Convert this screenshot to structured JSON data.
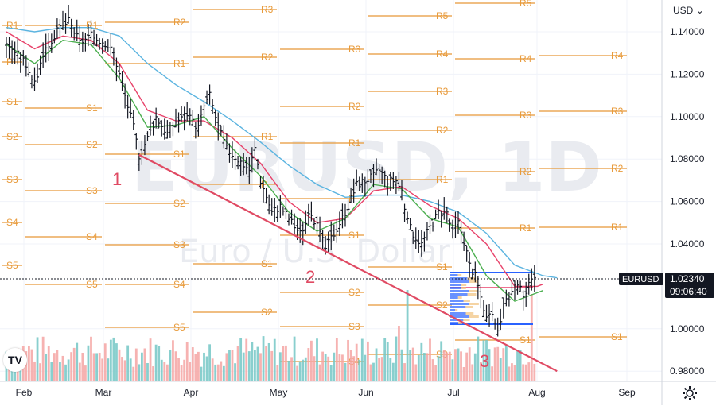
{
  "header": {
    "currency_label": "USD"
  },
  "watermark": {
    "symbol": "EURUSD, 1D",
    "description": "Euro / U.S. Dollar"
  },
  "price_tag": {
    "symbol": "EURUSD",
    "price": "1.02340",
    "countdown": "09:06:40"
  },
  "logo": {
    "text": "TV"
  },
  "chart_data": {
    "type": "candlestick",
    "title": "EURUSD, 1D",
    "subtitle": "Euro / U.S. Dollar",
    "x_ticks": [
      "Feb",
      "Mar",
      "Apr",
      "May",
      "Jun",
      "Jul",
      "Aug",
      "Sep"
    ],
    "y_ticks": [
      "1.14000",
      "1.12000",
      "1.10000",
      "1.08000",
      "1.06000",
      "1.04000",
      "1.00000",
      "0.98000"
    ],
    "ylim": [
      0.977,
      1.149
    ],
    "last_price": 1.0234,
    "wave_labels": [
      "1",
      "2",
      "3"
    ],
    "price_path": [
      [
        0,
        1.135
      ],
      [
        7,
        1.125
      ],
      [
        10,
        1.115
      ],
      [
        13,
        1.13
      ],
      [
        18,
        1.14
      ],
      [
        22,
        1.145
      ],
      [
        26,
        1.135
      ],
      [
        30,
        1.138
      ],
      [
        35,
        1.135
      ],
      [
        38,
        1.13
      ],
      [
        42,
        1.11
      ],
      [
        45,
        1.095
      ],
      [
        47,
        1.082
      ],
      [
        50,
        1.09
      ],
      [
        53,
        1.1
      ],
      [
        57,
        1.092
      ],
      [
        60,
        1.098
      ],
      [
        64,
        1.1
      ],
      [
        68,
        1.095
      ],
      [
        70,
        1.105
      ],
      [
        72,
        1.11
      ],
      [
        75,
        1.095
      ],
      [
        78,
        1.085
      ],
      [
        82,
        1.08
      ],
      [
        86,
        1.075
      ],
      [
        88,
        1.085
      ],
      [
        90,
        1.07
      ],
      [
        94,
        1.055
      ],
      [
        97,
        1.058
      ],
      [
        100,
        1.052
      ],
      [
        104,
        1.045
      ],
      [
        108,
        1.055
      ],
      [
        110,
        1.048
      ],
      [
        113,
        1.038
      ],
      [
        116,
        1.045
      ],
      [
        118,
        1.05
      ],
      [
        121,
        1.058
      ],
      [
        124,
        1.068
      ],
      [
        127,
        1.07
      ],
      [
        130,
        1.072
      ],
      [
        132,
        1.075
      ],
      [
        135,
        1.07
      ],
      [
        138,
        1.07
      ],
      [
        140,
        1.065
      ],
      [
        142,
        1.05
      ],
      [
        144,
        1.045
      ],
      [
        147,
        1.04
      ],
      [
        150,
        1.048
      ],
      [
        153,
        1.055
      ],
      [
        156,
        1.055
      ],
      [
        158,
        1.045
      ],
      [
        160,
        1.05
      ],
      [
        162,
        1.042
      ],
      [
        164,
        1.03
      ],
      [
        166,
        1.025
      ],
      [
        168,
        1.015
      ],
      [
        170,
        1.005
      ],
      [
        172,
        1.005
      ],
      [
        174,
        1.0
      ],
      [
        176,
        1.01
      ],
      [
        178,
        1.015
      ],
      [
        180,
        1.02
      ],
      [
        182,
        1.018
      ],
      [
        184,
        1.015
      ],
      [
        186,
        1.025
      ],
      [
        188,
        1.02
      ]
    ],
    "sma_red": [
      [
        0,
        1.14
      ],
      [
        10,
        1.132
      ],
      [
        20,
        1.138
      ],
      [
        30,
        1.136
      ],
      [
        40,
        1.125
      ],
      [
        50,
        1.103
      ],
      [
        60,
        1.098
      ],
      [
        70,
        1.098
      ],
      [
        80,
        1.09
      ],
      [
        90,
        1.078
      ],
      [
        100,
        1.06
      ],
      [
        110,
        1.05
      ],
      [
        120,
        1.052
      ],
      [
        130,
        1.065
      ],
      [
        140,
        1.067
      ],
      [
        150,
        1.058
      ],
      [
        160,
        1.052
      ],
      [
        170,
        1.04
      ],
      [
        180,
        1.02
      ],
      [
        188,
        1.02
      ],
      [
        190,
        1.021
      ]
    ],
    "sma_green": [
      [
        0,
        1.134
      ],
      [
        10,
        1.125
      ],
      [
        20,
        1.136
      ],
      [
        30,
        1.134
      ],
      [
        40,
        1.118
      ],
      [
        50,
        1.095
      ],
      [
        60,
        1.096
      ],
      [
        70,
        1.1
      ],
      [
        80,
        1.085
      ],
      [
        90,
        1.072
      ],
      [
        100,
        1.055
      ],
      [
        110,
        1.046
      ],
      [
        120,
        1.052
      ],
      [
        130,
        1.068
      ],
      [
        140,
        1.066
      ],
      [
        150,
        1.052
      ],
      [
        160,
        1.048
      ],
      [
        170,
        1.025
      ],
      [
        180,
        1.013
      ],
      [
        188,
        1.017
      ],
      [
        190,
        1.018
      ]
    ],
    "sma_blue": [
      [
        0,
        1.142
      ],
      [
        10,
        1.14
      ],
      [
        20,
        1.142
      ],
      [
        30,
        1.142
      ],
      [
        40,
        1.138
      ],
      [
        50,
        1.125
      ],
      [
        60,
        1.115
      ],
      [
        70,
        1.107
      ],
      [
        80,
        1.098
      ],
      [
        90,
        1.088
      ],
      [
        100,
        1.077
      ],
      [
        110,
        1.068
      ],
      [
        120,
        1.062
      ],
      [
        130,
        1.063
      ],
      [
        140,
        1.063
      ],
      [
        150,
        1.06
      ],
      [
        160,
        1.055
      ],
      [
        170,
        1.045
      ],
      [
        180,
        1.03
      ],
      [
        190,
        1.025
      ],
      [
        195,
        1.024
      ]
    ],
    "trendline": [
      [
        47,
        1.082
      ],
      [
        195,
        0.98
      ]
    ],
    "colors": {
      "candle": "#131722",
      "sma_red": "#e8426a",
      "sma_green": "#4caf50",
      "sma_blue": "#5bb4e0",
      "trendline": "#e04a63",
      "pivot": "#e89b3c",
      "volume_up": "#74c7c5",
      "volume_down": "#f5a5a3",
      "volume_profile": "#2962ff",
      "price_tag": "#131722"
    }
  }
}
